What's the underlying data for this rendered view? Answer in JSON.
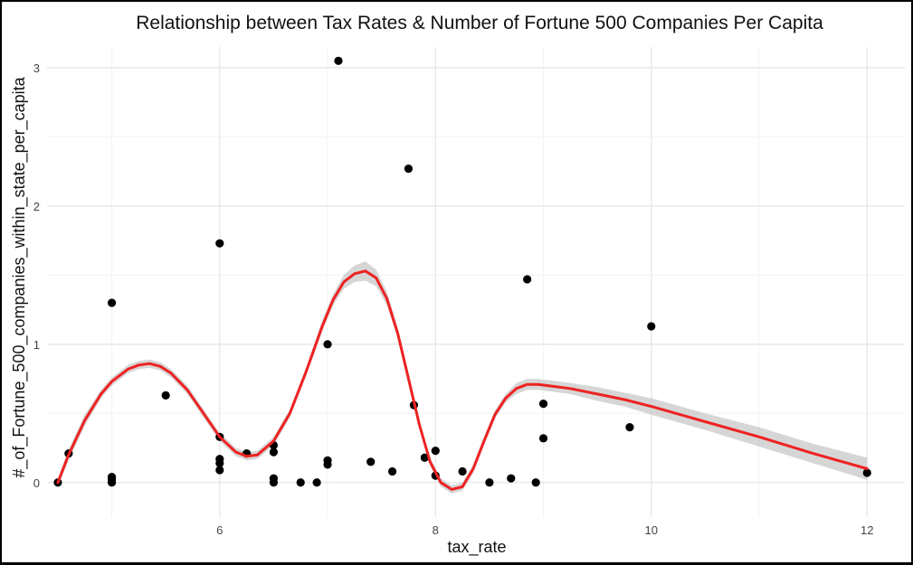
{
  "chart_data": {
    "type": "scatter",
    "title": "Relationship between Tax Rates & Number of Fortune 500 Companies Per Capita",
    "xlabel": "tax_rate",
    "ylabel": "#_of_Fortune_500_companies_within_state_per_capita",
    "xlim": [
      4.4,
      12.35
    ],
    "ylim": [
      -0.25,
      3.15
    ],
    "x_ticks": [
      6,
      8,
      10,
      12
    ],
    "y_ticks": [
      0,
      1,
      2,
      3
    ],
    "grid": true,
    "points": [
      {
        "x": 4.5,
        "y": 0.0
      },
      {
        "x": 4.6,
        "y": 0.21
      },
      {
        "x": 5.0,
        "y": 1.3
      },
      {
        "x": 5.0,
        "y": 0.04
      },
      {
        "x": 5.0,
        "y": 0.02
      },
      {
        "x": 5.0,
        "y": 0.0
      },
      {
        "x": 5.5,
        "y": 0.63
      },
      {
        "x": 6.0,
        "y": 1.73
      },
      {
        "x": 6.0,
        "y": 0.33
      },
      {
        "x": 6.0,
        "y": 0.17
      },
      {
        "x": 6.0,
        "y": 0.14
      },
      {
        "x": 6.0,
        "y": 0.09
      },
      {
        "x": 6.25,
        "y": 0.21
      },
      {
        "x": 6.5,
        "y": 0.27
      },
      {
        "x": 6.5,
        "y": 0.22
      },
      {
        "x": 6.5,
        "y": 0.03
      },
      {
        "x": 6.5,
        "y": 0.0
      },
      {
        "x": 6.75,
        "y": 0.0
      },
      {
        "x": 6.9,
        "y": 0.0
      },
      {
        "x": 7.0,
        "y": 1.0
      },
      {
        "x": 7.0,
        "y": 0.16
      },
      {
        "x": 7.0,
        "y": 0.13
      },
      {
        "x": 7.1,
        "y": 3.05
      },
      {
        "x": 7.4,
        "y": 0.15
      },
      {
        "x": 7.6,
        "y": 0.08
      },
      {
        "x": 7.75,
        "y": 2.27
      },
      {
        "x": 7.8,
        "y": 0.56
      },
      {
        "x": 7.9,
        "y": 0.18
      },
      {
        "x": 8.0,
        "y": 0.23
      },
      {
        "x": 8.0,
        "y": 0.05
      },
      {
        "x": 8.25,
        "y": 0.08
      },
      {
        "x": 8.5,
        "y": 0.0
      },
      {
        "x": 8.7,
        "y": 0.03
      },
      {
        "x": 8.85,
        "y": 1.47
      },
      {
        "x": 8.93,
        "y": 0.0
      },
      {
        "x": 9.0,
        "y": 0.57
      },
      {
        "x": 9.0,
        "y": 0.32
      },
      {
        "x": 9.8,
        "y": 0.4
      },
      {
        "x": 10.0,
        "y": 1.13
      },
      {
        "x": 12.0,
        "y": 0.07
      }
    ],
    "smooth_line": {
      "color": "#ee2222",
      "band_color": "#c8c8c8",
      "x": [
        4.5,
        4.6,
        4.75,
        4.9,
        5.0,
        5.15,
        5.25,
        5.35,
        5.45,
        5.55,
        5.7,
        5.85,
        6.0,
        6.15,
        6.25,
        6.35,
        6.5,
        6.65,
        6.8,
        6.95,
        7.05,
        7.15,
        7.25,
        7.35,
        7.45,
        7.55,
        7.65,
        7.75,
        7.85,
        7.95,
        8.05,
        8.15,
        8.25,
        8.35,
        8.45,
        8.55,
        8.65,
        8.75,
        8.85,
        8.95,
        9.05,
        9.25,
        9.5,
        9.75,
        10.0,
        10.5,
        11.0,
        11.5,
        12.0
      ],
      "y": [
        0.0,
        0.2,
        0.45,
        0.64,
        0.73,
        0.82,
        0.85,
        0.86,
        0.84,
        0.79,
        0.67,
        0.5,
        0.33,
        0.22,
        0.19,
        0.2,
        0.3,
        0.5,
        0.8,
        1.13,
        1.32,
        1.45,
        1.51,
        1.53,
        1.48,
        1.33,
        1.08,
        0.75,
        0.42,
        0.15,
        0.0,
        -0.05,
        -0.03,
        0.1,
        0.3,
        0.49,
        0.61,
        0.68,
        0.71,
        0.71,
        0.7,
        0.68,
        0.64,
        0.6,
        0.55,
        0.44,
        0.33,
        0.21,
        0.1
      ],
      "band": [
        0.03,
        0.04,
        0.04,
        0.03,
        0.03,
        0.03,
        0.03,
        0.03,
        0.03,
        0.03,
        0.03,
        0.03,
        0.03,
        0.03,
        0.03,
        0.03,
        0.03,
        0.03,
        0.03,
        0.04,
        0.04,
        0.05,
        0.06,
        0.07,
        0.06,
        0.05,
        0.04,
        0.04,
        0.03,
        0.03,
        0.03,
        0.03,
        0.03,
        0.03,
        0.03,
        0.03,
        0.03,
        0.04,
        0.04,
        0.04,
        0.04,
        0.04,
        0.05,
        0.05,
        0.06,
        0.06,
        0.07,
        0.07,
        0.08
      ]
    }
  }
}
